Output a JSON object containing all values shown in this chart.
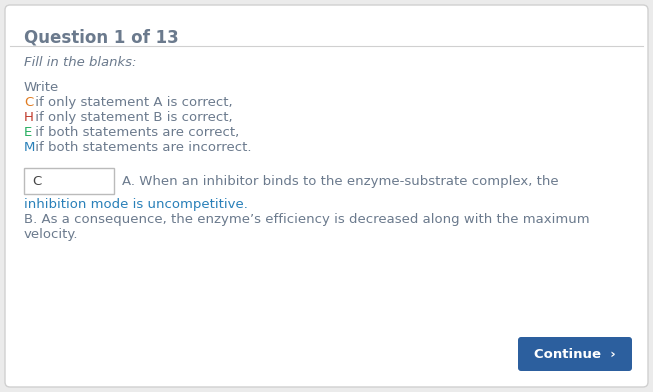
{
  "title": "Question 1 of 13",
  "title_color": "#6b7a8d",
  "title_fontsize": 12,
  "bg_color": "#ebebeb",
  "panel_color": "#ffffff",
  "subtitle": "Fill in the blanks:",
  "subtitle_color": "#6b7a8d",
  "subtitle_fontsize": 9.5,
  "write_label": "Write",
  "write_color": "#6b7a8d",
  "instructions": [
    {
      "letter": "C",
      "letter_color": "#e07b20",
      "rest": " if only statement A is correct,",
      "rest_color": "#6b7a8d"
    },
    {
      "letter": "H",
      "letter_color": "#c0392b",
      "rest": " if only statement B is correct,",
      "rest_color": "#6b7a8d"
    },
    {
      "letter": "E",
      "letter_color": "#27ae60",
      "rest": " if both statements are correct,",
      "rest_color": "#6b7a8d"
    },
    {
      "letter": "M",
      "letter_color": "#2980b9",
      "rest": " if both statements are incorrect.",
      "rest_color": "#6b7a8d"
    }
  ],
  "answer_box_text": "C",
  "answer_box_text_color": "#444444",
  "statement_a_line1": "A. When an inhibitor binds to the enzyme-substrate complex, the",
  "statement_a_line2": "inhibition mode is uncompetitive.",
  "statement_a_color": "#6b7a8d",
  "statement_a_line2_color": "#2980b9",
  "statement_b_line1": "B. As a consequence, the enzyme’s efficiency is decreased along with the maximum",
  "statement_b_line2": "velocity.",
  "statement_b_color": "#6b7a8d",
  "continue_btn_color": "#2c5f9e",
  "continue_btn_text": "Continue  ›",
  "continue_btn_text_color": "#ffffff",
  "fontsize_body": 9.5,
  "border_color": "#d0d0d0",
  "box_border_color": "#bbbbbb"
}
